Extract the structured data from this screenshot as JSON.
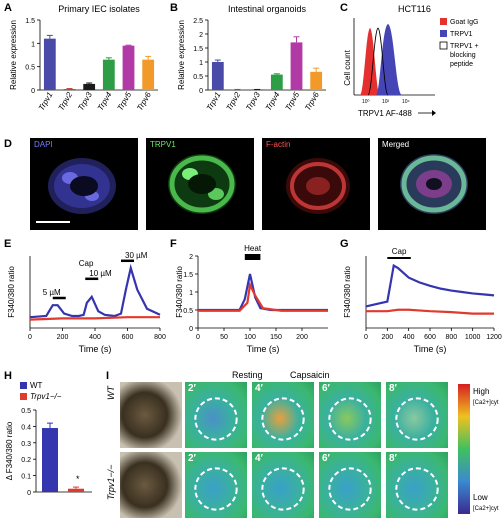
{
  "panels": {
    "A": {
      "label": "A",
      "title": "Primary IEC isolates",
      "ylabel": "Relative expression"
    },
    "B": {
      "label": "B",
      "title": "Intestinal organoids",
      "ylabel": "Relative expression"
    },
    "C": {
      "label": "C",
      "title": "HCT116",
      "ylabel": "Cell count",
      "xlabel": "TRPV1 AF-488",
      "legend": [
        "Goat IgG",
        "TRPV1",
        "TRPV1 +",
        "blocking",
        "peptide"
      ]
    },
    "D": {
      "label": "D",
      "channels": [
        "DAPI",
        "TRPV1",
        "F-actin",
        "Merged"
      ]
    },
    "E": {
      "label": "E",
      "ylabel": "F340/380 ratio",
      "xlabel": "Time (s)",
      "cap": "Cap",
      "doses": [
        "5 µM",
        "10 µM",
        "30 µM"
      ]
    },
    "F": {
      "label": "F",
      "ylabel": "F340/380 ratio",
      "xlabel": "Time (s)",
      "stim": "Heat"
    },
    "G": {
      "label": "G",
      "ylabel": "F340/380 ratio",
      "xlabel": "Time (s)",
      "stim": "Cap"
    },
    "H": {
      "label": "H",
      "ylabel": "Δ F340/380 ratio",
      "legend": [
        "WT",
        "Trpv1−/−"
      ],
      "star": "*"
    },
    "I": {
      "label": "I",
      "rows": [
        "WT",
        "Trpv1−/−"
      ],
      "resting": "Resting",
      "capsaicin": "Capsaicin",
      "times": [
        "2′",
        "4′",
        "6′",
        "8′"
      ],
      "high": "High",
      "low": "Low",
      "ca": "[Ca2+]cyt"
    }
  },
  "chart_data": [
    {
      "type": "bar",
      "panel": "A",
      "title": "Primary IEC isolates",
      "ylabel": "Relative expression",
      "categories": [
        "Trpv1",
        "Trpv2",
        "Trpv3",
        "Trpv4",
        "Trpv5",
        "Trpv6"
      ],
      "values": [
        1.1,
        0.02,
        0.13,
        0.65,
        0.95,
        0.65
      ],
      "errors": [
        0.07,
        0.01,
        0.02,
        0.04,
        0.01,
        0.07
      ],
      "colors": [
        "#4a4aa8",
        "#c0392b",
        "#1a1a1a",
        "#2e9e46",
        "#b13aa6",
        "#f19a2a"
      ],
      "ylim": [
        0,
        1.5
      ],
      "yticks": [
        0,
        0.5,
        1.0,
        1.5
      ]
    },
    {
      "type": "bar",
      "panel": "B",
      "title": "Intestinal organoids",
      "ylabel": "Relative expression",
      "categories": [
        "Trpv1",
        "Trpv2",
        "Trpv3",
        "Trpv4",
        "Trpv5",
        "Trpv6"
      ],
      "values": [
        1.0,
        0.01,
        0.01,
        0.55,
        1.7,
        0.65
      ],
      "errors": [
        0.07,
        0.01,
        0.01,
        0.03,
        0.2,
        0.13
      ],
      "colors": [
        "#4a4aa8",
        "#c0392b",
        "#1a1a1a",
        "#2e9e46",
        "#b13aa6",
        "#f19a2a"
      ],
      "ylim": [
        0,
        2.5
      ],
      "yticks": [
        0,
        0.5,
        1.0,
        1.5,
        2.0,
        2.5
      ]
    },
    {
      "type": "line",
      "panel": "E",
      "xlim": [
        0,
        800
      ],
      "ylim": [
        0,
        3
      ],
      "xticks": [
        0,
        200,
        400,
        600,
        800
      ],
      "yticks": [],
      "series": [
        {
          "name": "WT",
          "color": "#3535b0",
          "x": [
            0,
            100,
            140,
            170,
            210,
            260,
            300,
            330,
            350,
            380,
            420,
            460,
            520,
            560,
            590,
            620,
            660,
            720,
            800
          ],
          "y": [
            0.45,
            0.5,
            0.95,
            0.95,
            0.6,
            0.5,
            0.5,
            0.55,
            1.05,
            1.3,
            0.7,
            0.55,
            0.5,
            0.6,
            1.6,
            2.5,
            1.6,
            0.8,
            0.55
          ]
        },
        {
          "name": "Trpv1−/−",
          "color": "#e03a2e",
          "x": [
            0,
            200,
            400,
            600,
            800
          ],
          "y": [
            0.35,
            0.4,
            0.4,
            0.45,
            0.45
          ]
        }
      ]
    },
    {
      "type": "line",
      "panel": "F",
      "xlim": [
        0,
        250
      ],
      "ylim": [
        0,
        2
      ],
      "xticks": [
        0,
        50,
        100,
        150,
        200
      ],
      "yticks": [
        0,
        0.5,
        1.0,
        1.5,
        2.0
      ],
      "series": [
        {
          "name": "WT",
          "color": "#3535b0",
          "x": [
            0,
            80,
            90,
            100,
            110,
            120,
            140,
            200,
            250
          ],
          "y": [
            0.5,
            0.5,
            0.8,
            1.5,
            0.85,
            0.55,
            0.5,
            0.5,
            0.5
          ]
        },
        {
          "name": "Trpv1−/−",
          "color": "#e03a2e",
          "x": [
            0,
            80,
            95,
            100,
            110,
            125,
            160,
            250
          ],
          "y": [
            0.48,
            0.48,
            0.7,
            1.2,
            0.9,
            0.55,
            0.48,
            0.48
          ]
        }
      ]
    },
    {
      "type": "line",
      "panel": "G",
      "xlim": [
        0,
        1200
      ],
      "ylim": [
        0,
        1.5
      ],
      "xticks": [
        0,
        200,
        400,
        600,
        800,
        1000,
        1200
      ],
      "yticks": [],
      "series": [
        {
          "name": "WT",
          "color": "#3535b0",
          "x": [
            0,
            200,
            260,
            300,
            400,
            500,
            600,
            700,
            800,
            900,
            1000,
            1100,
            1200
          ],
          "y": [
            0.45,
            0.55,
            1.3,
            1.25,
            1.05,
            0.95,
            0.88,
            0.82,
            0.78,
            0.75,
            0.72,
            0.7,
            0.68
          ]
        },
        {
          "name": "Trpv1−/−",
          "color": "#e03a2e",
          "x": [
            0,
            200,
            300,
            400,
            600,
            800,
            1000,
            1200
          ],
          "y": [
            0.35,
            0.35,
            0.38,
            0.38,
            0.35,
            0.33,
            0.3,
            0.3
          ]
        }
      ]
    },
    {
      "type": "bar",
      "panel": "H",
      "ylabel": "Δ F340/380 ratio",
      "categories": [
        "WT",
        "Trpv1−/−"
      ],
      "values": [
        0.39,
        0.02
      ],
      "errors": [
        0.03,
        0.01
      ],
      "colors": [
        "#3535b0",
        "#e03a2e"
      ],
      "ylim": [
        0,
        0.5
      ],
      "yticks": [
        0,
        0.1,
        0.2,
        0.3,
        0.4,
        0.5
      ]
    }
  ]
}
